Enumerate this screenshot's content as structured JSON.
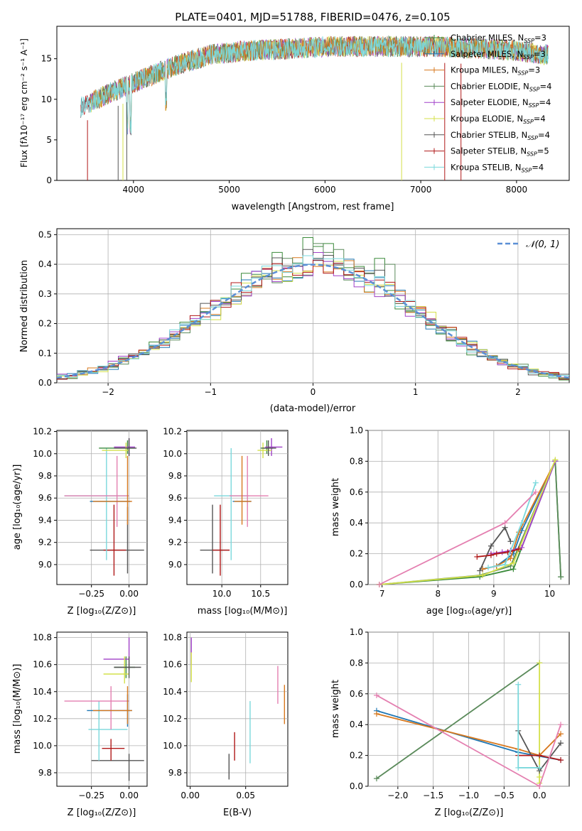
{
  "title": "PLATE=0401, MJD=51788, FIBERID=0476, z=0.105",
  "colors": {
    "Chabrier MILES": "#3a8a3a",
    "Salpeter MILES": "#1f77b4",
    "Kroupa MILES": "#d7781e",
    "Chabrier ELODIE": "#5a8a5a",
    "Salpeter ELODIE": "#a040c8",
    "Kroupa ELODIE": "#d4e04a",
    "Chabrier STELIB": "#555555",
    "Salpeter STELIB": "#b01818",
    "Kroupa STELIB": "#7ad8dc",
    "normal": "#5b8fd6",
    "pink": "#e47fb0"
  },
  "panels": {
    "spectrum": {
      "xlabel": "wavelength [Angstrom, rest frame]",
      "ylabel": "Flux [fλ10⁻¹⁷ erg cm⁻² s⁻¹ A⁻¹]",
      "xticks": [
        "4000",
        "5000",
        "6000",
        "7000",
        "8000"
      ],
      "yticks": [
        "0",
        "5",
        "10",
        "15"
      ],
      "legend": [
        "Chabrier MILES, N_SSP=3",
        "Salpeter MILES, N_SSP=3",
        "Kroupa MILES, N_SSP=3",
        "Chabrier ELODIE, N_SSP=4",
        "Salpeter ELODIE, N_SSP=4",
        "Kroupa ELODIE, N_SSP=4",
        "Chabrier STELIB, N_SSP=4",
        "Salpeter STELIB, N_SSP=5",
        "Kroupa STELIB, N_SSP=4"
      ]
    },
    "hist": {
      "xlabel": "(data-model)/error",
      "ylabel": "Normed distribution",
      "legend": "𝒩(0, 1)",
      "xticks": [
        "−2",
        "−1",
        "0",
        "1",
        "2"
      ],
      "yticks": [
        "0.0",
        "0.1",
        "0.2",
        "0.3",
        "0.4",
        "0.5"
      ]
    },
    "zage": {
      "xlabel": "Z [log₁₀(Z/Z⊙)]",
      "ylabel": "age  [log₁₀(age/yr)]",
      "xticks": [
        "−0.25",
        "0.00"
      ],
      "yticks": [
        "9.0",
        "9.2",
        "9.4",
        "9.6",
        "9.8",
        "10.0",
        "10.2"
      ]
    },
    "massage": {
      "xlabel": "mass [log₁₀(M/M⊙)]",
      "xticks": [
        "10.0",
        "10.5"
      ],
      "yticks": [
        "9.0",
        "9.2",
        "9.4",
        "9.6",
        "9.8",
        "10.0",
        "10.2"
      ]
    },
    "agew": {
      "xlabel": "age  [log₁₀(age/yr)]",
      "ylabel": "mass weight",
      "xticks": [
        "7",
        "8",
        "9",
        "10"
      ],
      "yticks": [
        "0.0",
        "0.2",
        "0.4",
        "0.6",
        "0.8",
        "1.0"
      ]
    },
    "zmass": {
      "xlabel": "Z [log₁₀(Z/Z⊙)]",
      "ylabel": "mass [log₁₀(M/M⊙)]",
      "xticks": [
        "−0.25",
        "0.00"
      ],
      "yticks": [
        "9.8",
        "10.0",
        "10.2",
        "10.4",
        "10.6",
        "10.8"
      ]
    },
    "ebv": {
      "xlabel": "E(B-V)",
      "xticks": [
        "0.00",
        "0.05"
      ],
      "yticks": [
        "9.8",
        "10.0",
        "10.2",
        "10.4",
        "10.6",
        "10.8"
      ]
    },
    "zw": {
      "xlabel": "Z [log₁₀(Z/Z⊙)]",
      "ylabel": "mass weight",
      "xticks": [
        "−2.0",
        "−1.5",
        "−1.0",
        "−0.5",
        "0.0"
      ],
      "yticks": [
        "0.0",
        "0.2",
        "0.4",
        "0.6",
        "0.8",
        "1.0"
      ]
    }
  },
  "chart_data": [
    {
      "type": "line",
      "title": "PLATE=0401, MJD=51788, FIBERID=0476, z=0.105",
      "xlabel": "wavelength [Angstrom, rest frame]",
      "ylabel": "Flux [fλ10⁻¹⁷ erg cm⁻² s⁻¹ A⁻¹]",
      "xlim": [
        3200,
        8550
      ],
      "ylim": [
        0,
        19
      ],
      "continuum": {
        "x": [
          3450,
          3700,
          3900,
          4100,
          4400,
          4800,
          5200,
          5600,
          6000,
          6400,
          6800,
          7200,
          7600,
          8000,
          8300
        ],
        "y": [
          9,
          10.5,
          11.5,
          12.5,
          14,
          15.5,
          16,
          16.2,
          16.5,
          16.5,
          16.5,
          16.5,
          16.3,
          16,
          15.5
        ]
      },
      "series_names": [
        "Chabrier MILES",
        "Salpeter MILES",
        "Kroupa MILES",
        "Chabrier ELODIE",
        "Salpeter ELODIE",
        "Kroupa ELODIE",
        "Chabrier STELIB",
        "Salpeter STELIB",
        "Kroupa STELIB"
      ],
      "legend_position": "upper right"
    },
    {
      "type": "line",
      "xlabel": "(data-model)/error",
      "ylabel": "Normed distribution",
      "xlim": [
        -2.5,
        2.5
      ],
      "ylim": [
        0,
        0.52
      ],
      "bin_width": 0.1,
      "series": [
        {
          "name": "Chabrier MILES",
          "color": "#3a8a3a",
          "shift": 0.04
        },
        {
          "name": "Salpeter MILES",
          "color": "#1f77b4",
          "shift": -0.02
        },
        {
          "name": "Kroupa MILES",
          "color": "#d7781e",
          "shift": 0.0
        },
        {
          "name": "Chabrier ELODIE",
          "color": "#5a8a5a",
          "shift": -0.03
        },
        {
          "name": "Salpeter ELODIE",
          "color": "#a040c8",
          "shift": 0.02
        },
        {
          "name": "Kroupa ELODIE",
          "color": "#d4e04a",
          "shift": -0.04
        },
        {
          "name": "Chabrier STELIB",
          "color": "#555555",
          "shift": 0.03
        },
        {
          "name": "Salpeter STELIB",
          "color": "#b01818",
          "shift": -0.01
        },
        {
          "name": "Kroupa STELIB",
          "color": "#7ad8dc",
          "shift": 0.01
        }
      ],
      "peaks": [
        {
          "x": 0.0,
          "y": 0.49
        },
        {
          "x": 0.1,
          "y": 0.46
        },
        {
          "x": 0.2,
          "y": 0.47
        },
        {
          "x": 0.7,
          "y": 0.42
        },
        {
          "x": -0.3,
          "y": 0.44
        }
      ],
      "normal": {
        "name": "𝒩(0, 1)",
        "mean": 0,
        "sd": 1
      }
    },
    {
      "type": "scatter",
      "xlabel": "Z [log₁₀(Z/Z⊙)]",
      "ylabel": "age  [log₁₀(age/yr)]",
      "xlim": [
        -0.48,
        0.12
      ],
      "ylim": [
        8.82,
        10.21
      ],
      "errorbars": [
        {
          "color": "#555555",
          "x": -0.01,
          "y": 9.13,
          "x0": -0.26,
          "x1": 0.1,
          "y0": 8.92,
          "y1": 9.52
        },
        {
          "color": "#b01818",
          "x": -0.1,
          "y": 9.13,
          "x0": -0.17,
          "x1": -0.02,
          "y0": 8.9,
          "y1": 9.54
        },
        {
          "color": "#7ad8dc",
          "x": -0.15,
          "y": 9.62,
          "x0": -0.43,
          "x1": 0.0,
          "y0": 9.04,
          "y1": 10.05
        },
        {
          "color": "#e47fb0",
          "x": -0.08,
          "y": 9.62,
          "x0": -0.43,
          "x1": 0.0,
          "y0": 9.34,
          "y1": 9.98
        },
        {
          "color": "#1f77b4",
          "x": -0.01,
          "y": 9.57,
          "x0": -0.26,
          "x1": 0.01,
          "y0": 9.57,
          "y1": 9.57
        },
        {
          "color": "#d7781e",
          "x": -0.01,
          "y": 9.57,
          "x0": -0.24,
          "x1": 0.02,
          "y0": 9.36,
          "y1": 9.98
        },
        {
          "color": "#3a8a3a",
          "x": -0.01,
          "y": 10.05,
          "x0": -0.2,
          "x1": 0.04,
          "y0": 10.0,
          "y1": 10.12
        },
        {
          "color": "#a040c8",
          "x": 0.0,
          "y": 10.06,
          "x0": -0.1,
          "x1": 0.04,
          "y0": 9.98,
          "y1": 10.14
        },
        {
          "color": "#d4e04a",
          "x": -0.02,
          "y": 10.03,
          "x0": -0.18,
          "x1": 0.0,
          "y0": 9.96,
          "y1": 10.1
        },
        {
          "color": "#555555",
          "x": 0.0,
          "y": 10.05,
          "x0": -0.1,
          "x1": 0.05,
          "y0": 9.98,
          "y1": 10.14
        }
      ]
    },
    {
      "type": "scatter",
      "xlabel": "mass [log₁₀(M/M⊙)]",
      "xlim": [
        9.55,
        10.85
      ],
      "ylim": [
        8.82,
        10.21
      ],
      "errorbars": [
        {
          "color": "#555555",
          "x": 9.88,
          "y": 9.13,
          "x0": 9.72,
          "x1": 10.1,
          "y0": 8.92,
          "y1": 9.54
        },
        {
          "color": "#b01818",
          "x": 9.98,
          "y": 9.13,
          "x0": 9.88,
          "x1": 10.1,
          "y0": 8.9,
          "y1": 9.54
        },
        {
          "color": "#7ad8dc",
          "x": 10.12,
          "y": 9.62,
          "x0": 9.9,
          "x1": 10.35,
          "y0": 9.04,
          "y1": 10.05
        },
        {
          "color": "#e47fb0",
          "x": 10.33,
          "y": 9.62,
          "x0": 10.1,
          "x1": 10.6,
          "y0": 9.34,
          "y1": 9.98
        },
        {
          "color": "#1f77b4",
          "x": 10.26,
          "y": 9.57,
          "x0": 10.14,
          "x1": 10.38,
          "y0": 9.57,
          "y1": 9.57
        },
        {
          "color": "#d7781e",
          "x": 10.26,
          "y": 9.57,
          "x0": 10.16,
          "x1": 10.38,
          "y0": 9.36,
          "y1": 9.98
        },
        {
          "color": "#3a8a3a",
          "x": 10.58,
          "y": 10.05,
          "x0": 10.5,
          "x1": 10.66,
          "y0": 10.0,
          "y1": 10.12
        },
        {
          "color": "#a040c8",
          "x": 10.64,
          "y": 10.06,
          "x0": 10.56,
          "x1": 10.78,
          "y0": 9.98,
          "y1": 10.14
        },
        {
          "color": "#d4e04a",
          "x": 10.53,
          "y": 10.03,
          "x0": 10.46,
          "x1": 10.64,
          "y0": 9.96,
          "y1": 10.1
        },
        {
          "color": "#555555",
          "x": 10.6,
          "y": 10.05,
          "x0": 10.52,
          "x1": 10.7,
          "y0": 9.98,
          "y1": 10.12
        }
      ]
    },
    {
      "type": "line",
      "xlabel": "age  [log₁₀(age/yr)]",
      "ylabel": "mass weight",
      "xlim": [
        6.75,
        10.35
      ],
      "ylim": [
        0,
        1.0
      ],
      "series": [
        {
          "name": "Chabrier MILES",
          "color": "#3a8a3a",
          "x": [
            6.95,
            8.75,
            9.35,
            10.1,
            10.2
          ],
          "y": [
            0.0,
            0.05,
            0.1,
            0.8,
            0.05
          ]
        },
        {
          "name": "Salpeter MILES",
          "color": "#1f77b4",
          "x": [
            8.8,
            9.05,
            9.35,
            9.5,
            10.1
          ],
          "y": [
            0.1,
            0.12,
            0.2,
            0.35,
            0.8
          ]
        },
        {
          "name": "Kroupa MILES",
          "color": "#d7781e",
          "x": [
            8.8,
            9.05,
            9.3,
            9.45,
            10.1
          ],
          "y": [
            0.1,
            0.12,
            0.17,
            0.34,
            0.8
          ]
        },
        {
          "name": "Chabrier ELODIE",
          "color": "#5a8a5a",
          "x": [
            6.95,
            8.75,
            9.3,
            10.1,
            10.2
          ],
          "y": [
            0.0,
            0.06,
            0.12,
            0.8,
            0.05
          ]
        },
        {
          "name": "Salpeter ELODIE",
          "color": "#a040c8",
          "x": [
            8.95,
            9.15,
            9.3,
            9.5,
            10.1
          ],
          "y": [
            0.2,
            0.21,
            0.22,
            0.24,
            0.8
          ]
        },
        {
          "name": "Kroupa ELODIE",
          "color": "#d4e04a",
          "x": [
            6.95,
            8.8,
            9.35,
            10.1
          ],
          "y": [
            0.0,
            0.06,
            0.14,
            0.81
          ]
        },
        {
          "name": "Chabrier STELIB",
          "color": "#555555",
          "x": [
            8.75,
            8.95,
            9.2,
            9.3
          ],
          "y": [
            0.09,
            0.25,
            0.37,
            0.28
          ]
        },
        {
          "name": "Salpeter STELIB",
          "color": "#b01818",
          "x": [
            8.7,
            8.95,
            9.05,
            9.25,
            9.45
          ],
          "y": [
            0.18,
            0.19,
            0.2,
            0.21,
            0.23
          ]
        },
        {
          "name": "Kroupa STELIB",
          "color": "#7ad8dc",
          "x": [
            8.9,
            9.2,
            9.5,
            9.75
          ],
          "y": [
            0.11,
            0.13,
            0.4,
            0.66
          ]
        },
        {
          "name": "",
          "color": "#e47fb0",
          "x": [
            6.95,
            9.2,
            9.75
          ],
          "y": [
            0.0,
            0.4,
            0.6
          ]
        }
      ]
    },
    {
      "type": "scatter",
      "xlabel": "Z [log₁₀(Z/Z⊙)]",
      "ylabel": "mass [log₁₀(M/M⊙)]",
      "xlim": [
        -0.48,
        0.12
      ],
      "ylim": [
        9.7,
        10.84
      ],
      "errorbars": [
        {
          "color": "#555555",
          "x": 0.0,
          "y": 9.89,
          "x0": -0.25,
          "x1": 0.1,
          "y0": 9.74,
          "y1": 9.94
        },
        {
          "color": "#b01818",
          "x": -0.12,
          "y": 9.98,
          "x0": -0.18,
          "x1": -0.03,
          "y0": 9.89,
          "y1": 10.05
        },
        {
          "color": "#7ad8dc",
          "x": -0.2,
          "y": 10.12,
          "x0": -0.27,
          "x1": -0.01,
          "y0": 9.89,
          "y1": 10.33
        },
        {
          "color": "#e47fb0",
          "x": -0.12,
          "y": 10.33,
          "x0": -0.43,
          "x1": 0.0,
          "y0": 10.12,
          "y1": 10.44
        },
        {
          "color": "#1f77b4",
          "x": -0.01,
          "y": 10.26,
          "x0": -0.28,
          "x1": 0.02,
          "y0": 10.14,
          "y1": 10.38
        },
        {
          "color": "#d7781e",
          "x": -0.01,
          "y": 10.26,
          "x0": -0.24,
          "x1": 0.02,
          "y0": 10.16,
          "y1": 10.44
        },
        {
          "color": "#3a8a3a",
          "x": -0.02,
          "y": 10.58,
          "x0": -0.1,
          "x1": 0.04,
          "y0": 10.5,
          "y1": 10.66
        },
        {
          "color": "#a040c8",
          "x": 0.0,
          "y": 10.64,
          "x0": -0.17,
          "x1": 0.0,
          "y0": 10.56,
          "y1": 10.8
        },
        {
          "color": "#d4e04a",
          "x": -0.03,
          "y": 10.53,
          "x0": -0.17,
          "x1": 0.0,
          "y0": 10.46,
          "y1": 10.66
        },
        {
          "color": "#555555",
          "x": 0.0,
          "y": 10.58,
          "x0": -0.1,
          "x1": 0.08,
          "y0": 10.5,
          "y1": 10.66
        }
      ]
    },
    {
      "type": "scatter",
      "xlabel": "E(B-V)",
      "xlim": [
        -0.003,
        0.088
      ],
      "ylim": [
        9.7,
        10.84
      ],
      "errorbars": [
        {
          "color": "#555555",
          "x": 0.035,
          "y": 9.84,
          "x0": 0.035,
          "x1": 0.035,
          "y0": 9.75,
          "y1": 9.94
        },
        {
          "color": "#b01818",
          "x": 0.04,
          "y": 9.98,
          "x0": 0.04,
          "x1": 0.04,
          "y0": 9.89,
          "y1": 10.1
        },
        {
          "color": "#7ad8dc",
          "x": 0.054,
          "y": 10.1,
          "x0": 0.054,
          "x1": 0.054,
          "y0": 9.87,
          "y1": 10.33
        },
        {
          "color": "#e47fb0",
          "x": 0.079,
          "y": 10.45,
          "x0": 0.079,
          "x1": 0.079,
          "y0": 10.31,
          "y1": 10.59
        },
        {
          "color": "#d7781e",
          "x": 0.085,
          "y": 10.3,
          "x0": 0.085,
          "x1": 0.085,
          "y0": 10.16,
          "y1": 10.45
        },
        {
          "color": "#a040c8",
          "x": 0.001,
          "y": 10.7,
          "x0": 0.001,
          "x1": 0.001,
          "y0": 10.6,
          "y1": 10.8
        },
        {
          "color": "#d4e04a",
          "x": 0.001,
          "y": 10.58,
          "x0": 0.001,
          "x1": 0.001,
          "y0": 10.47,
          "y1": 10.69
        }
      ]
    },
    {
      "type": "line",
      "xlabel": "Z [log₁₀(Z/Z⊙)]",
      "ylabel": "mass weight",
      "xlim": [
        -2.42,
        0.42
      ],
      "ylim": [
        0,
        1.0
      ],
      "series": [
        {
          "name": "Chabrier MILES",
          "color": "#5a8a5a",
          "x": [
            -2.3,
            0.0
          ],
          "y": [
            0.05,
            0.8
          ]
        },
        {
          "name": "Salpeter MILES",
          "color": "#1f77b4",
          "x": [
            -2.3,
            -0.3,
            0.3
          ],
          "y": [
            0.49,
            0.22,
            0.17
          ]
        },
        {
          "name": "Kroupa MILES",
          "color": "#d7781e",
          "x": [
            -2.3,
            -0.3,
            0.0,
            0.3
          ],
          "y": [
            0.47,
            0.24,
            0.2,
            0.34
          ]
        },
        {
          "name": "Kroupa ELODIE",
          "color": "#d4e04a",
          "x": [
            0.0,
            0.0,
            0.0
          ],
          "y": [
            0.8,
            0.06,
            0.02
          ]
        },
        {
          "name": "Chabrier STELIB",
          "color": "#555555",
          "x": [
            -0.3,
            0.0,
            0.3
          ],
          "y": [
            0.36,
            0.1,
            0.28
          ]
        },
        {
          "name": "Salpeter STELIB",
          "color": "#b01818",
          "x": [
            -0.3,
            0.0,
            0.3
          ],
          "y": [
            0.2,
            0.2,
            0.17
          ]
        },
        {
          "name": "Kroupa STELIB",
          "color": "#7ad8dc",
          "x": [
            -0.3,
            -0.3,
            0.0
          ],
          "y": [
            0.66,
            0.12,
            0.12
          ]
        },
        {
          "name": "",
          "color": "#e47fb0",
          "x": [
            -2.3,
            0.0,
            0.3
          ],
          "y": [
            0.59,
            0.0,
            0.4
          ]
        }
      ]
    }
  ]
}
